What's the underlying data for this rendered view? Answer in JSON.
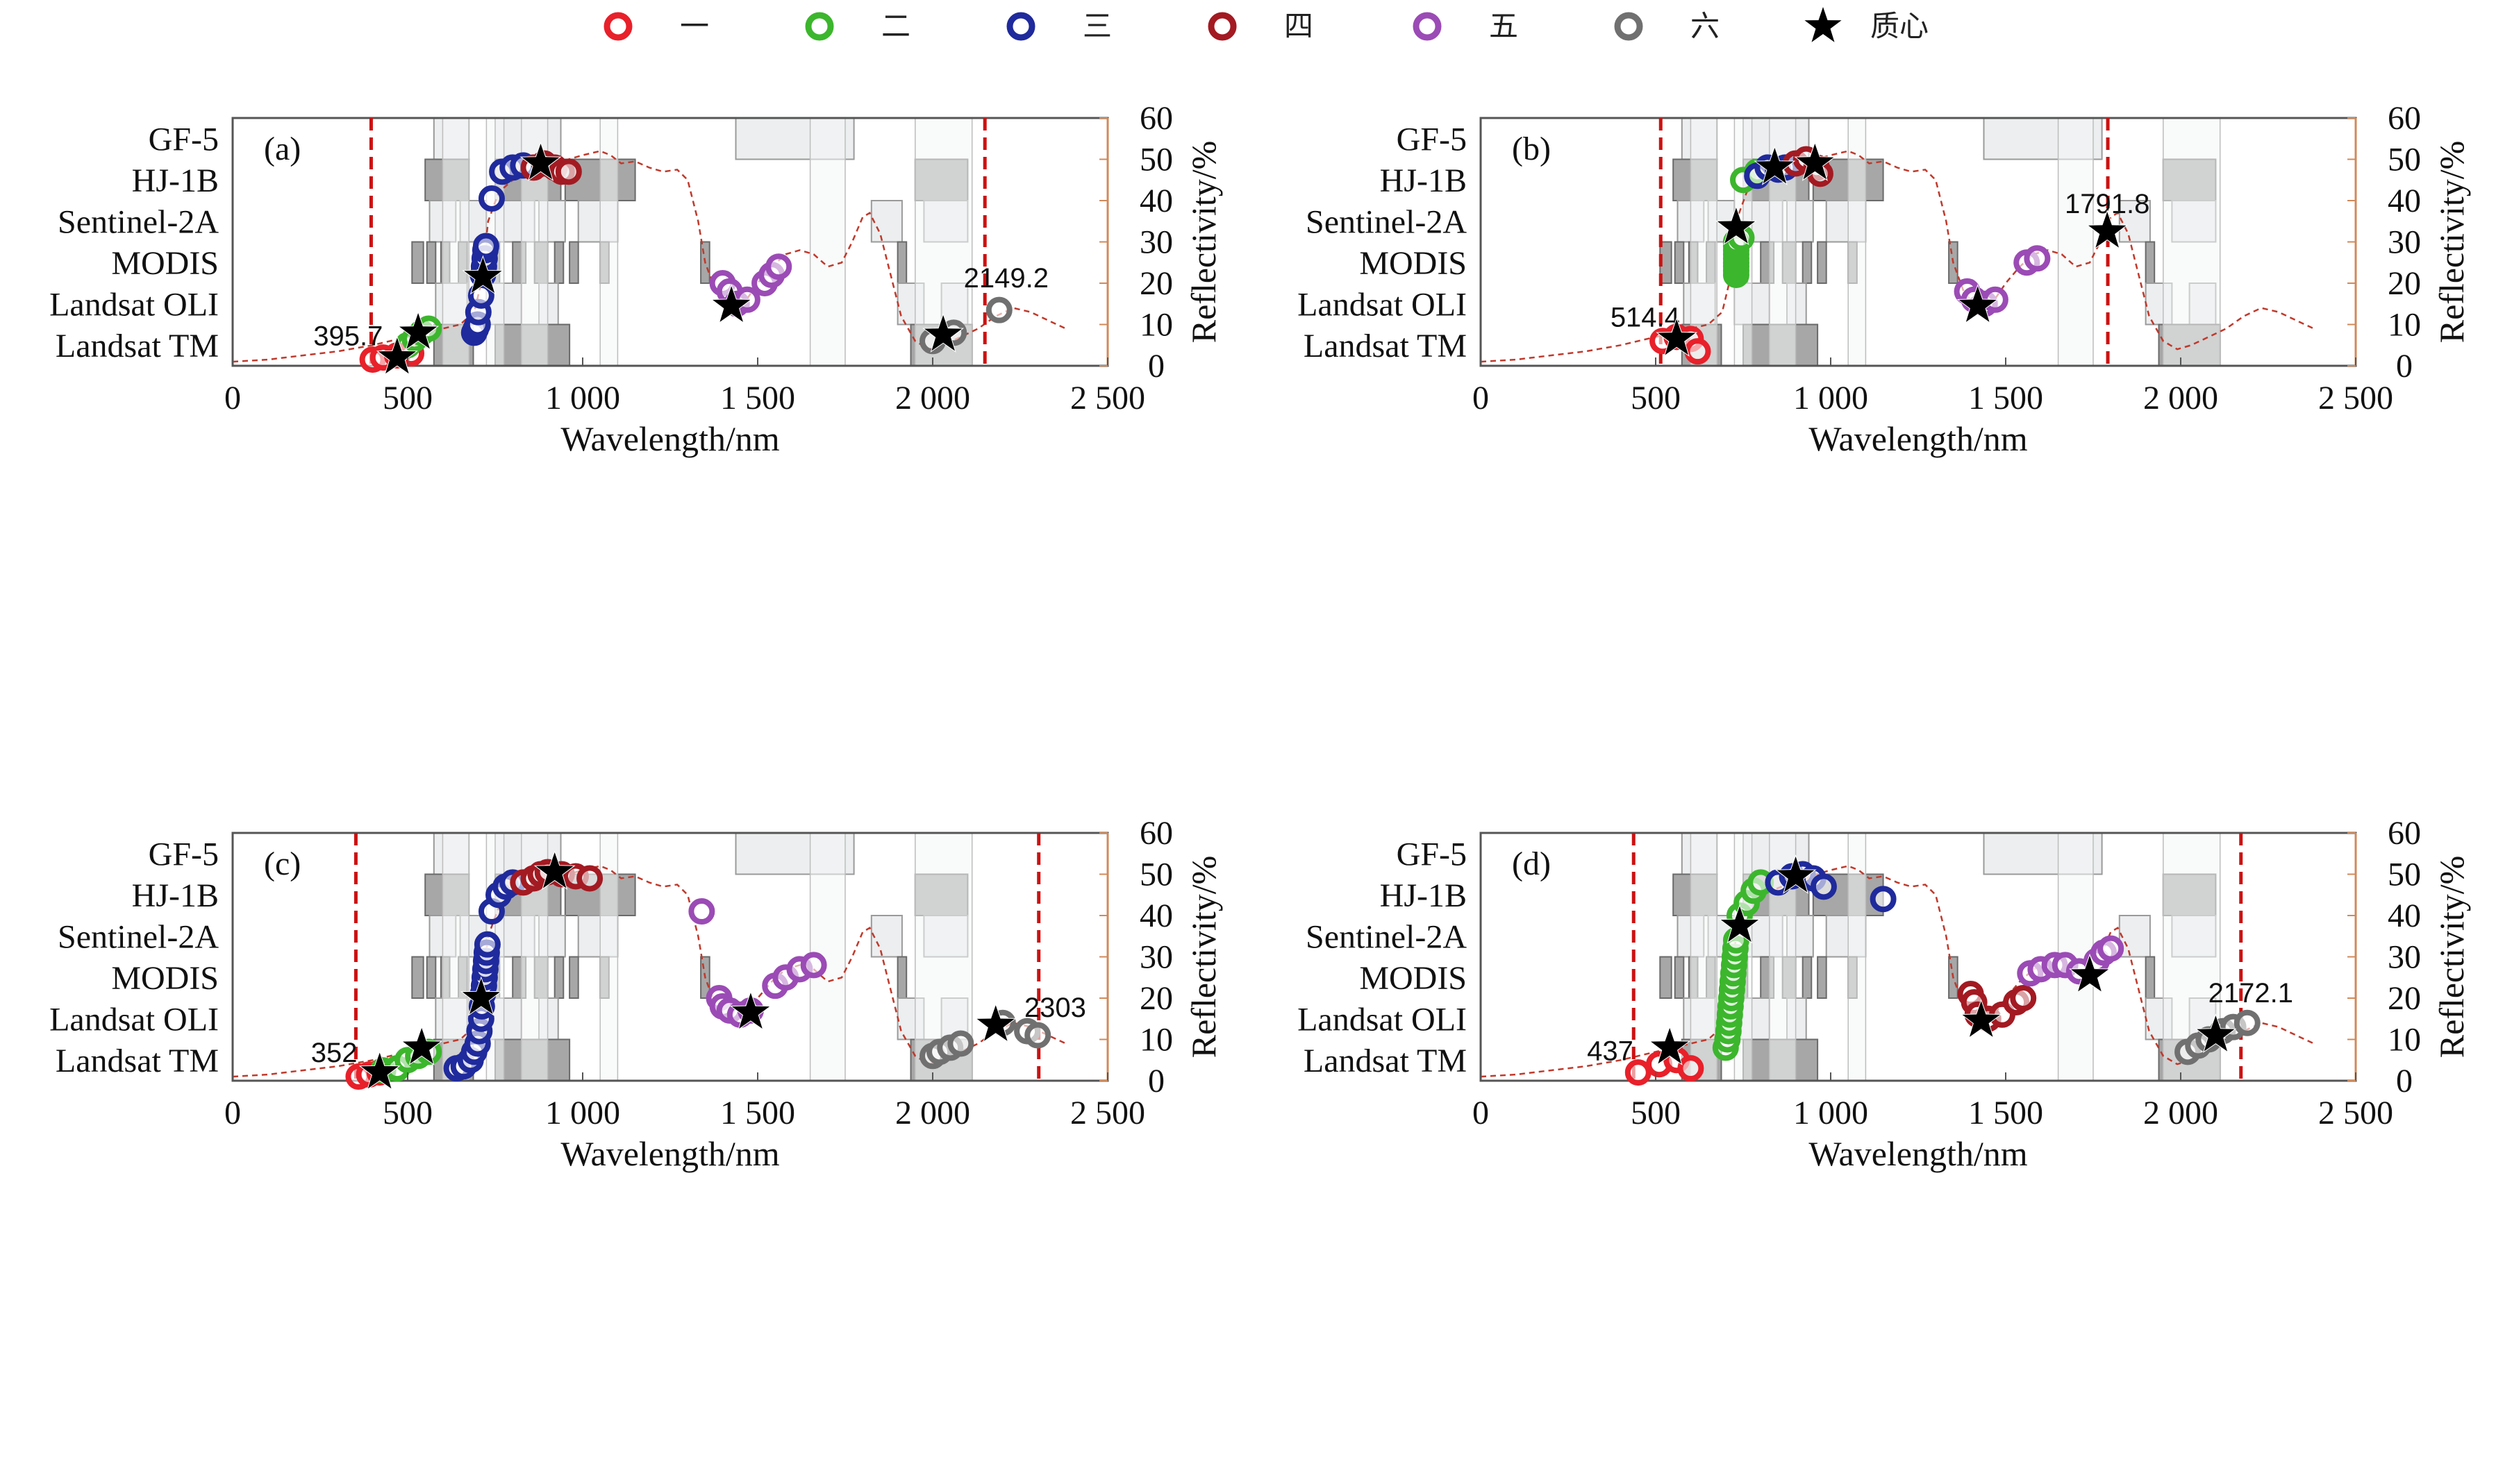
{
  "legend": {
    "items": [
      {
        "label": "一",
        "color": "#e8202a",
        "marker": "ring"
      },
      {
        "label": "二",
        "color": "#3cb62d",
        "marker": "ring"
      },
      {
        "label": "三",
        "color": "#1f2a9c",
        "marker": "ring"
      },
      {
        "label": "四",
        "color": "#a31a22",
        "marker": "ring"
      },
      {
        "label": "五",
        "color": "#9b4bb5",
        "marker": "ring"
      },
      {
        "label": "六",
        "color": "#707070",
        "marker": "ring"
      },
      {
        "label": "质心",
        "color": "#000000",
        "marker": "star"
      }
    ]
  },
  "axes_text": {
    "xlabel": "Wavelength/nm",
    "ylabel": "Reflectivity/%",
    "sensors": [
      "GF-5",
      "HJ-1B",
      "Sentinel-2A",
      "MODIS",
      "Landsat OLI",
      "Landsat TM"
    ],
    "xticks": [
      "0",
      "500",
      "1 000",
      "1 500",
      "2 000",
      "2 500"
    ],
    "yticks": [
      "0",
      "10",
      "20",
      "30",
      "40",
      "50",
      "60"
    ]
  },
  "chart_data": [
    {
      "type": "scatter",
      "panel_label": "(a)",
      "xlim": [
        0,
        2500
      ],
      "ylim": [
        0,
        60
      ],
      "boundaries": [
        395.7,
        2149.2
      ],
      "boundary_labels": [
        "395.7",
        "2149.2"
      ],
      "boundary_label_pos": [
        [
          330,
          5
        ],
        [
          2210,
          19
        ]
      ],
      "clusters": [
        {
          "name": "一",
          "color": "#e8202a",
          "points": [
            [
              400,
              1.5
            ],
            [
              430,
              2
            ],
            [
              470,
              2.5
            ],
            [
              510,
              3
            ]
          ]
        },
        {
          "name": "二",
          "color": "#3cb62d",
          "points": [
            [
              500,
              5
            ],
            [
              520,
              6.5
            ],
            [
              540,
              8
            ],
            [
              560,
              9
            ]
          ]
        },
        {
          "name": "三",
          "color": "#1f2a9c",
          "points": [
            [
              690,
              8
            ],
            [
              695,
              9
            ],
            [
              700,
              10
            ],
            [
              702,
              13
            ],
            [
              710,
              17
            ],
            [
              715,
              22
            ],
            [
              718,
              24
            ],
            [
              720,
              26
            ],
            [
              722,
              28
            ],
            [
              724,
              29
            ],
            [
              740,
              40.5
            ],
            [
              770,
              47
            ],
            [
              800,
              48
            ],
            [
              830,
              48.5
            ]
          ]
        },
        {
          "name": "四",
          "color": "#a31a22",
          "points": [
            [
              860,
              48
            ],
            [
              890,
              49
            ],
            [
              920,
              48
            ],
            [
              940,
              47
            ],
            [
              960,
              47
            ]
          ]
        },
        {
          "name": "五",
          "color": "#9b4bb5",
          "points": [
            [
              1400,
              20
            ],
            [
              1420,
              18
            ],
            [
              1440,
              15
            ],
            [
              1470,
              16
            ],
            [
              1520,
              20
            ],
            [
              1540,
              22
            ],
            [
              1560,
              24
            ]
          ]
        },
        {
          "name": "六",
          "color": "#707070",
          "points": [
            [
              2000,
              6
            ],
            [
              2060,
              8
            ],
            [
              2190,
              13.5
            ]
          ]
        }
      ],
      "centroids": [
        [
          470,
          2
        ],
        [
          530,
          8
        ],
        [
          715,
          21.5
        ],
        [
          880,
          49
        ],
        [
          1425,
          14.5
        ],
        [
          2030,
          7.5
        ]
      ]
    },
    {
      "type": "scatter",
      "panel_label": "(b)",
      "xlim": [
        0,
        2500
      ],
      "ylim": [
        0,
        60
      ],
      "boundaries": [
        514.4,
        1791.8
      ],
      "boundary_labels": [
        "514.4",
        "1791.8"
      ],
      "boundary_label_pos": [
        [
          470,
          9.5
        ],
        [
          1790,
          37
        ]
      ],
      "clusters": [
        {
          "name": "一",
          "color": "#e8202a",
          "points": [
            [
              520,
              6
            ],
            [
              560,
              7
            ],
            [
              600,
              6.5
            ],
            [
              620,
              3.5
            ]
          ]
        },
        {
          "name": "二",
          "color": "#3cb62d",
          "points": [
            [
              730,
              22
            ],
            [
              730,
              23
            ],
            [
              730,
              24
            ],
            [
              730,
              25
            ],
            [
              730,
              26
            ],
            [
              730,
              27
            ],
            [
              730,
              28
            ],
            [
              730,
              29
            ],
            [
              730,
              30
            ],
            [
              745,
              31
            ],
            [
              750,
              45
            ],
            [
              790,
              47
            ]
          ]
        },
        {
          "name": "三",
          "color": "#1f2a9c",
          "points": [
            [
              790,
              46
            ],
            [
              820,
              48
            ],
            [
              850,
              47.5
            ],
            [
              870,
              48
            ]
          ]
        },
        {
          "name": "四",
          "color": "#a31a22",
          "points": [
            [
              900,
              49
            ],
            [
              930,
              50
            ],
            [
              960,
              48
            ],
            [
              970,
              46.5
            ]
          ]
        },
        {
          "name": "五",
          "color": "#9b4bb5",
          "points": [
            [
              1390,
              18
            ],
            [
              1410,
              16
            ],
            [
              1440,
              15
            ],
            [
              1470,
              16
            ],
            [
              1560,
              25
            ],
            [
              1590,
              26
            ]
          ]
        },
        {
          "name": "六",
          "color": "#707070",
          "points": []
        }
      ],
      "centroids": [
        [
          560,
          6.5
        ],
        [
          730,
          33.5
        ],
        [
          840,
          48
        ],
        [
          955,
          49
        ],
        [
          1420,
          14.5
        ],
        [
          1790,
          32.5
        ]
      ]
    },
    {
      "type": "scatter",
      "panel_label": "(c)",
      "xlim": [
        0,
        2500
      ],
      "ylim": [
        0,
        60
      ],
      "boundaries": [
        352,
        2303
      ],
      "boundary_labels": [
        "352",
        "2303"
      ],
      "boundary_label_pos": [
        [
          290,
          4.5
        ],
        [
          2350,
          15.5
        ]
      ],
      "clusters": [
        {
          "name": "一",
          "color": "#e8202a",
          "points": [
            [
              360,
              1
            ],
            [
              390,
              1.5
            ],
            [
              420,
              2
            ]
          ]
        },
        {
          "name": "二",
          "color": "#3cb62d",
          "points": [
            [
              430,
              2.5
            ],
            [
              470,
              3
            ],
            [
              500,
              5
            ],
            [
              530,
              6
            ],
            [
              560,
              7
            ]
          ]
        },
        {
          "name": "三",
          "color": "#1f2a9c",
          "points": [
            [
              640,
              3
            ],
            [
              660,
              3.5
            ],
            [
              680,
              5
            ],
            [
              690,
              7
            ],
            [
              700,
              9
            ],
            [
              705,
              12
            ],
            [
              710,
              15
            ],
            [
              712,
              18
            ],
            [
              715,
              21
            ],
            [
              718,
              23
            ],
            [
              720,
              25
            ],
            [
              722,
              27
            ],
            [
              724,
              29
            ],
            [
              726,
              31
            ],
            [
              728,
              33
            ],
            [
              740,
              41
            ],
            [
              760,
              45
            ],
            [
              780,
              47
            ],
            [
              800,
              48
            ]
          ]
        },
        {
          "name": "四",
          "color": "#a31a22",
          "points": [
            [
              830,
              48
            ],
            [
              860,
              49
            ],
            [
              880,
              50
            ],
            [
              900,
              50.5
            ],
            [
              940,
              50
            ],
            [
              980,
              49.5
            ],
            [
              1020,
              49
            ]
          ]
        },
        {
          "name": "五",
          "color": "#9b4bb5",
          "points": [
            [
              1340,
              41
            ],
            [
              1390,
              20
            ],
            [
              1400,
              18
            ],
            [
              1420,
              17
            ],
            [
              1450,
              16
            ],
            [
              1480,
              17
            ],
            [
              1550,
              23
            ],
            [
              1580,
              25
            ],
            [
              1620,
              27
            ],
            [
              1660,
              28
            ]
          ]
        },
        {
          "name": "六",
          "color": "#707070",
          "points": [
            [
              2000,
              6
            ],
            [
              2020,
              7
            ],
            [
              2050,
              8
            ],
            [
              2080,
              9
            ],
            [
              2200,
              14
            ],
            [
              2270,
              12
            ],
            [
              2300,
              11
            ]
          ]
        }
      ],
      "centroids": [
        [
          420,
          2
        ],
        [
          540,
          8
        ],
        [
          710,
          20
        ],
        [
          920,
          50.5
        ],
        [
          1480,
          16.5
        ],
        [
          2180,
          13.5
        ]
      ]
    },
    {
      "type": "scatter",
      "panel_label": "(d)",
      "xlim": [
        0,
        2500
      ],
      "ylim": [
        0,
        60
      ],
      "boundaries": [
        437,
        2172.1
      ],
      "boundary_labels": [
        "437",
        "2172.1"
      ],
      "boundary_label_pos": [
        [
          370,
          5
        ],
        [
          2200,
          19
        ]
      ],
      "clusters": [
        {
          "name": "一",
          "color": "#e8202a",
          "points": [
            [
              450,
              2
            ],
            [
              510,
              4
            ],
            [
              560,
              5
            ],
            [
              600,
              3
            ]
          ]
        },
        {
          "name": "二",
          "color": "#3cb62d",
          "points": [
            [
              700,
              8
            ],
            [
              705,
              10
            ],
            [
              708,
              12
            ],
            [
              710,
              14
            ],
            [
              712,
              16
            ],
            [
              714,
              18
            ],
            [
              716,
              20
            ],
            [
              718,
              22
            ],
            [
              720,
              24
            ],
            [
              722,
              26
            ],
            [
              724,
              28
            ],
            [
              726,
              30
            ],
            [
              728,
              32
            ],
            [
              730,
              34
            ],
            [
              740,
              40
            ],
            [
              760,
              43
            ],
            [
              780,
              46
            ],
            [
              800,
              48
            ]
          ]
        },
        {
          "name": "三",
          "color": "#1f2a9c",
          "points": [
            [
              850,
              48
            ],
            [
              890,
              49.5
            ],
            [
              920,
              50
            ],
            [
              950,
              49
            ],
            [
              980,
              47
            ],
            [
              1150,
              44
            ]
          ]
        },
        {
          "name": "四",
          "color": "#a31a22",
          "points": [
            [
              1400,
              21
            ],
            [
              1410,
              19
            ],
            [
              1420,
              16
            ],
            [
              1450,
              15
            ],
            [
              1490,
              16
            ],
            [
              1530,
              19
            ],
            [
              1550,
              20
            ]
          ]
        },
        {
          "name": "五",
          "color": "#9b4bb5",
          "points": [
            [
              1570,
              26
            ],
            [
              1600,
              27
            ],
            [
              1640,
              28
            ],
            [
              1670,
              28
            ],
            [
              1710,
              26.5
            ],
            [
              1760,
              29
            ],
            [
              1780,
              31
            ],
            [
              1800,
              32
            ]
          ]
        },
        {
          "name": "六",
          "color": "#707070",
          "points": [
            [
              2020,
              7
            ],
            [
              2050,
              8.5
            ],
            [
              2080,
              10
            ],
            [
              2120,
              12
            ],
            [
              2150,
              13
            ],
            [
              2190,
              14
            ]
          ]
        }
      ],
      "centroids": [
        [
          540,
          8
        ],
        [
          740,
          37.5
        ],
        [
          900,
          49.5
        ],
        [
          1430,
          14.5
        ],
        [
          1740,
          25.5
        ],
        [
          2100,
          11
        ]
      ]
    }
  ]
}
